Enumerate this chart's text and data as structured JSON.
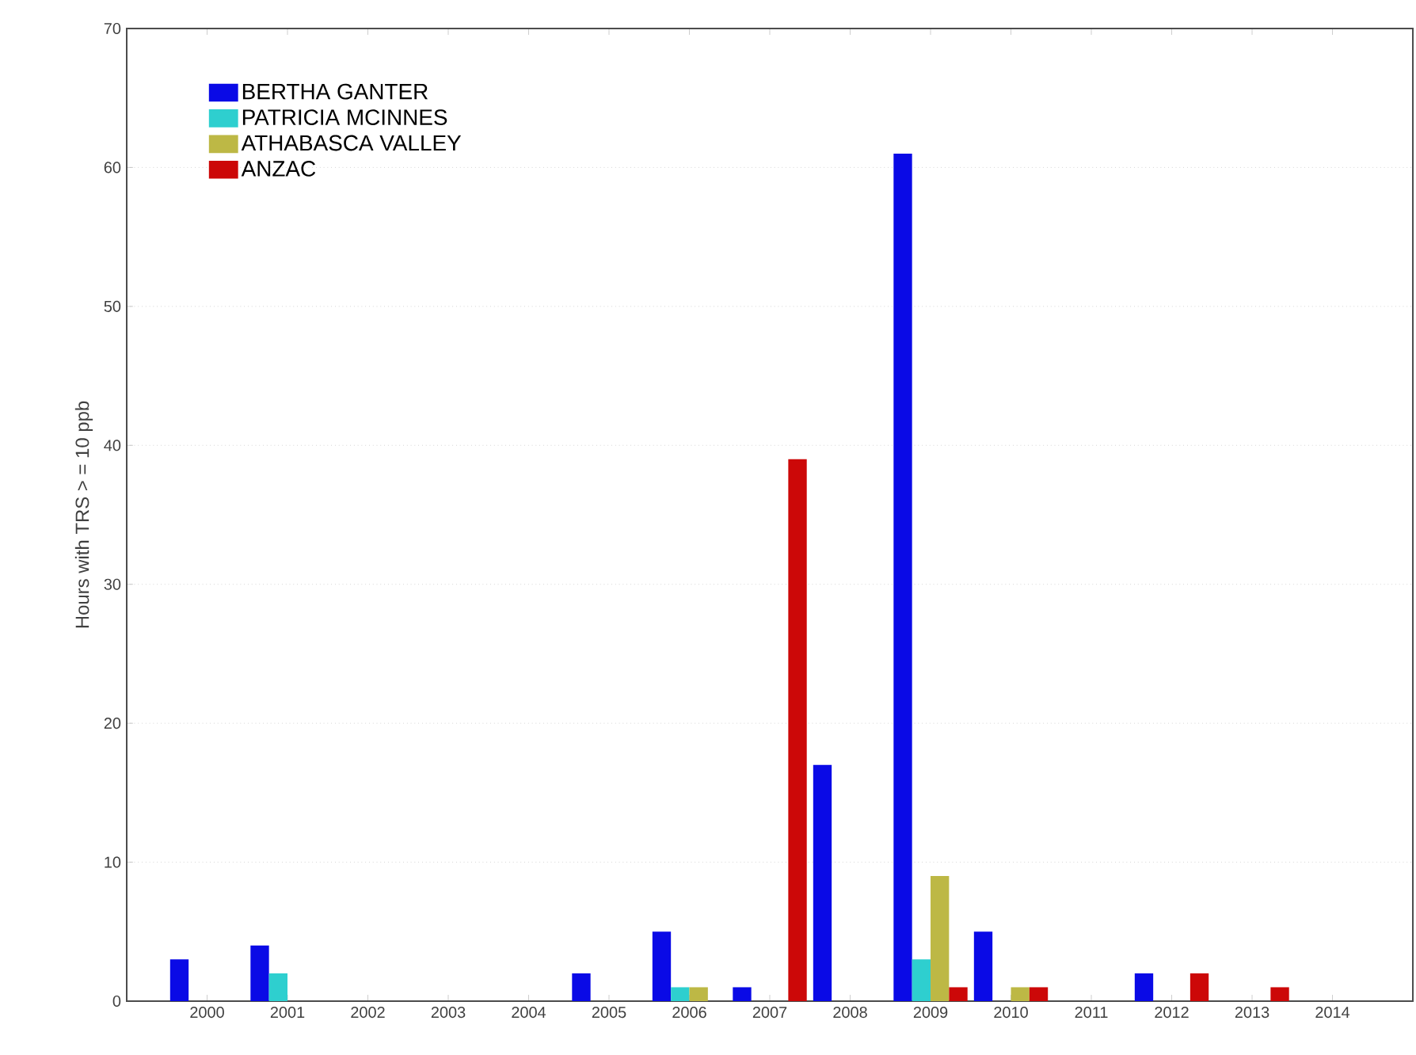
{
  "chart_data": {
    "type": "bar",
    "ylabel": "Hours with TRS > = 10 ppb",
    "categories": [
      "2000",
      "2001",
      "2002",
      "2003",
      "2004",
      "2005",
      "2006",
      "2007",
      "2008",
      "2009",
      "2010",
      "2011",
      "2012",
      "2013",
      "2014"
    ],
    "series": [
      {
        "name": "BERTHA GANTER",
        "color": "#0a0ae6",
        "values": [
          3,
          4,
          0,
          0,
          0,
          2,
          5,
          1,
          17,
          61,
          5,
          0,
          2,
          0,
          0
        ]
      },
      {
        "name": "PATRICIA MCINNES",
        "color": "#2ecfcf",
        "values": [
          0,
          2,
          0,
          0,
          0,
          0,
          1,
          0,
          0,
          3,
          0,
          0,
          0,
          0,
          0
        ]
      },
      {
        "name": "ATHABASCA VALLEY",
        "color": "#bdb845",
        "values": [
          0,
          0,
          0,
          0,
          0,
          0,
          1,
          0,
          0,
          9,
          1,
          0,
          0,
          0,
          0
        ]
      },
      {
        "name": "ANZAC",
        "color": "#cc0808",
        "values": [
          0,
          0,
          0,
          0,
          0,
          0,
          0,
          39,
          0,
          1,
          1,
          0,
          2,
          1,
          0
        ]
      }
    ],
    "ylim": [
      0,
      70
    ],
    "yticks": [
      0,
      10,
      20,
      30,
      40,
      50,
      60,
      70
    ],
    "grid": "y",
    "legend": "top left"
  }
}
